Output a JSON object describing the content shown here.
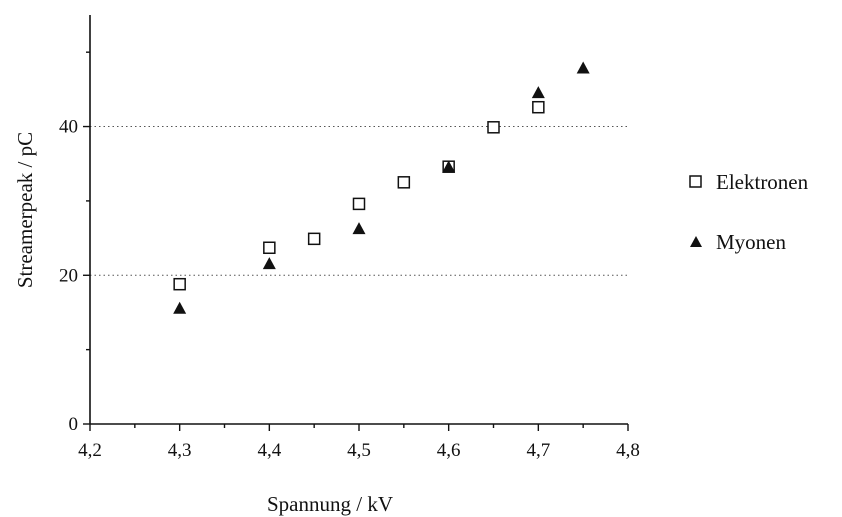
{
  "chart_data": {
    "type": "scatter",
    "xlabel": "Spannung / kV",
    "ylabel": "Streamerpeak  / pC",
    "xlim": [
      4.2,
      4.8
    ],
    "ylim": [
      0,
      55
    ],
    "xticks": [
      "4,2",
      "4,3",
      "4,4",
      "4,5",
      "4,6",
      "4,7",
      "4,8"
    ],
    "yticks": [
      "0",
      "20",
      "40"
    ],
    "grid": "dotted horizontal lines at 20 and 40",
    "legend_position": "right",
    "series": [
      {
        "name": "Elektronen",
        "marker": "open-square",
        "color": "#111111",
        "x": [
          4.3,
          4.4,
          4.45,
          4.5,
          4.55,
          4.6,
          4.65,
          4.7
        ],
        "y": [
          18.8,
          23.7,
          24.9,
          29.6,
          32.5,
          34.6,
          39.9,
          42.6
        ]
      },
      {
        "name": "Myonen",
        "marker": "filled-triangle",
        "color": "#111111",
        "x": [
          4.3,
          4.4,
          4.5,
          4.6,
          4.7,
          4.75
        ],
        "y": [
          15.5,
          21.5,
          26.2,
          34.5,
          44.5,
          47.8
        ]
      }
    ]
  }
}
